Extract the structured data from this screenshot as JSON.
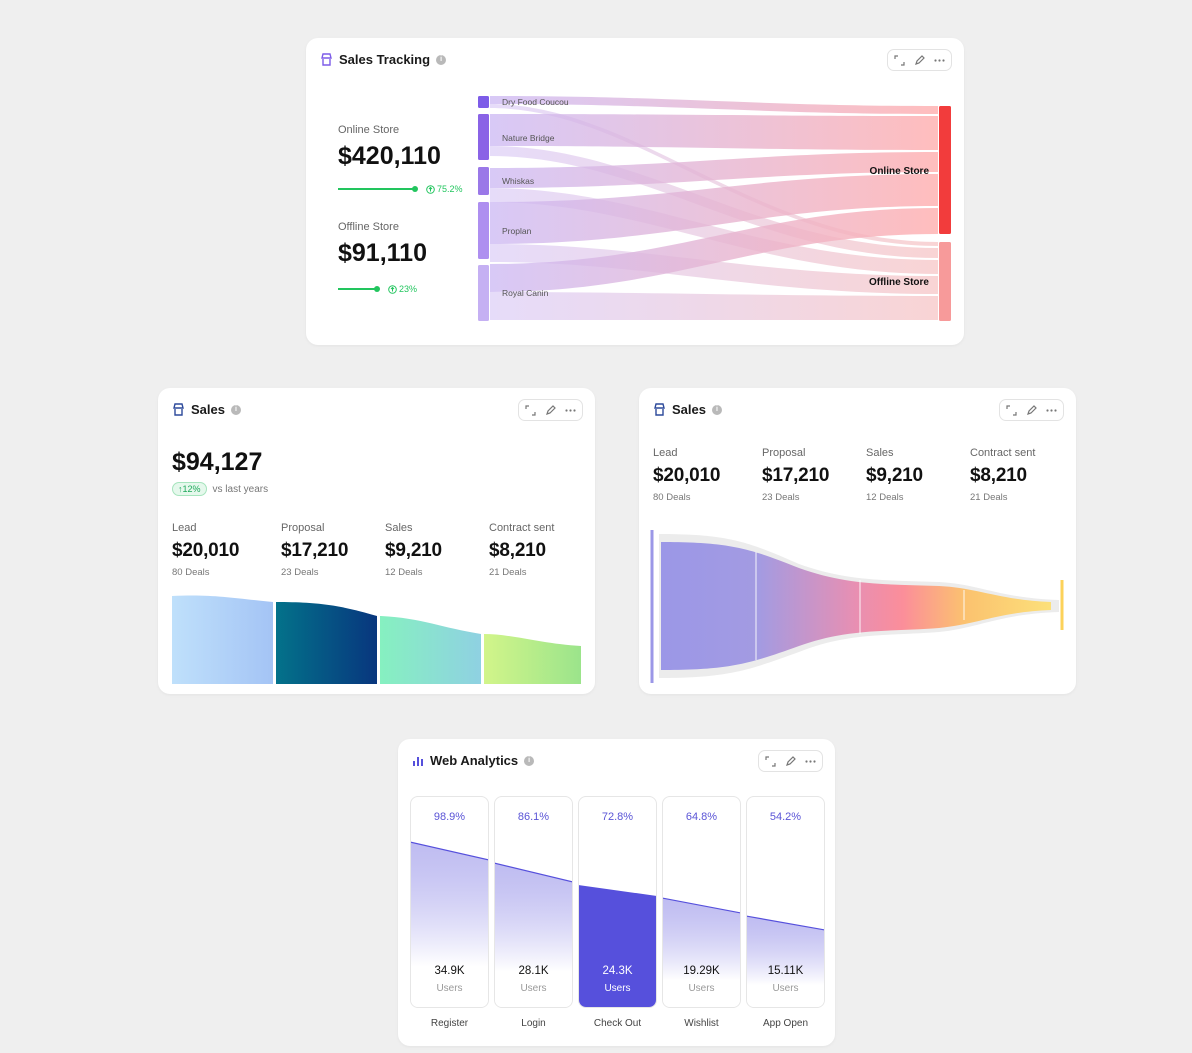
{
  "sales_tracking": {
    "title": "Sales Tracking",
    "online": {
      "label": "Online Store",
      "value": "$420,110",
      "pct": "75.2%",
      "progress": 0.752
    },
    "offline": {
      "label": "Offline Store",
      "value": "$91,110",
      "pct": "23%",
      "progress": 0.23
    },
    "sources": [
      "Dry Food Coucou",
      "Nature Bridge",
      "Whiskas",
      "Proplan",
      "Royal Canin"
    ],
    "targets": [
      "Online Store",
      "Offline Store"
    ],
    "colors": {
      "source": "#7d5ce8",
      "online": "#f23c3c",
      "offline": "#f79a9a"
    }
  },
  "sales_left": {
    "title": "Sales",
    "total": "$94,127",
    "change": "12%",
    "change_suffix": "vs last years",
    "stages": [
      {
        "label": "Lead",
        "value": "$20,010",
        "deals": "80 Deals"
      },
      {
        "label": "Proposal",
        "value": "$17,210",
        "deals": "23 Deals"
      },
      {
        "label": "Sales",
        "value": "$9,210",
        "deals": "12 Deals"
      },
      {
        "label": "Contract sent",
        "value": "$8,210",
        "deals": "21 Deals"
      }
    ]
  },
  "sales_right": {
    "title": "Sales",
    "stages": [
      {
        "label": "Lead",
        "value": "$20,010",
        "deals": "80 Deals"
      },
      {
        "label": "Proposal",
        "value": "$17,210",
        "deals": "23 Deals"
      },
      {
        "label": "Sales",
        "value": "$9,210",
        "deals": "12 Deals"
      },
      {
        "label": "Contract sent",
        "value": "$8,210",
        "deals": "21 Deals"
      }
    ]
  },
  "web_analytics": {
    "title": "Web Analytics",
    "accent": "#5650dc",
    "stages": [
      {
        "label": "Register",
        "pct": "98.9%",
        "count": "34.9K",
        "unit": "Users",
        "level": 0.989
      },
      {
        "label": "Login",
        "pct": "86.1%",
        "count": "28.1K",
        "unit": "Users",
        "level": 0.861
      },
      {
        "label": "Check Out",
        "pct": "72.8%",
        "count": "24.3K",
        "unit": "Users",
        "level": 0.728,
        "active": true
      },
      {
        "label": "Wishlist",
        "pct": "64.8%",
        "count": "19.29K",
        "unit": "Users",
        "level": 0.648
      },
      {
        "label": "App Open",
        "pct": "54.2%",
        "count": "15.11K",
        "unit": "Users",
        "level": 0.542
      }
    ]
  }
}
